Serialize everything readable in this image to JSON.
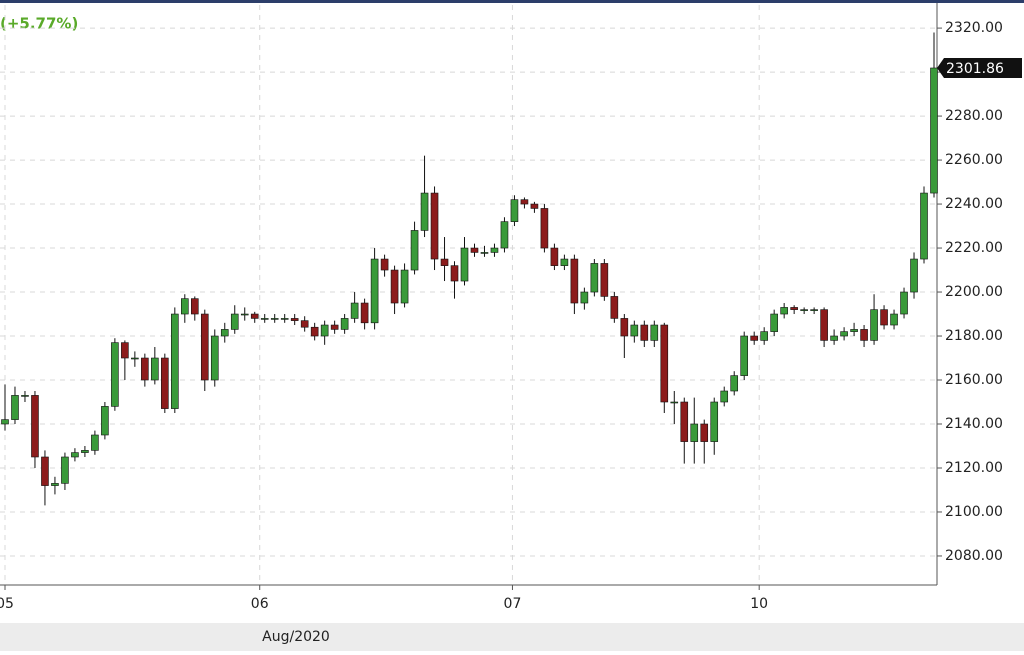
{
  "chart_data": {
    "type": "candlestick",
    "change_label": "(+5.77%)",
    "x_axis_label": "Aug/2020",
    "up_color": "#3a9a3a",
    "down_color": "#8c1c1c",
    "grid": true,
    "x": [
      0,
      1,
      2,
      3,
      4,
      5,
      6,
      7,
      8,
      9,
      10,
      11,
      12,
      13,
      14,
      15,
      16,
      17,
      18,
      19,
      20,
      21,
      22,
      23,
      24,
      25,
      26,
      27,
      28,
      29,
      30,
      31,
      32,
      33,
      34,
      35,
      36,
      37,
      38,
      39,
      40,
      41,
      42,
      43,
      44,
      45,
      46,
      47,
      48,
      49,
      50,
      51,
      52,
      53,
      54,
      55,
      56,
      57,
      58,
      59,
      60,
      61,
      62,
      63,
      64,
      65,
      66,
      67,
      68,
      69,
      70,
      71,
      72,
      73,
      74,
      75,
      76,
      77,
      78,
      79,
      80,
      81,
      82,
      83,
      84,
      85,
      86,
      87,
      88,
      89,
      90,
      91,
      92,
      93
    ],
    "open": [
      2140,
      2142,
      2153,
      2153,
      2125,
      2112,
      2113,
      2125,
      2127,
      2128,
      2135,
      2148,
      2177,
      2170,
      2170,
      2160,
      2170,
      2147,
      2190,
      2197,
      2190,
      2160,
      2180,
      2183,
      2190,
      2190,
      2188,
      2188,
      2188,
      2188,
      2187,
      2184,
      2180,
      2185,
      2183,
      2188,
      2195,
      2186,
      2215,
      2210,
      2195,
      2210,
      2228,
      2245,
      2215,
      2212,
      2205,
      2220,
      2218,
      2218,
      2220,
      2232,
      2242,
      2240,
      2238,
      2220,
      2212,
      2215,
      2195,
      2200,
      2213,
      2198,
      2188,
      2180,
      2185,
      2178,
      2185,
      2150,
      2150,
      2132,
      2140,
      2132,
      2150,
      2155,
      2162,
      2180,
      2178,
      2182,
      2190,
      2193,
      2192,
      2192,
      2192,
      2178,
      2180,
      2182,
      2183,
      2178,
      2192,
      2185,
      2190,
      2200,
      2215,
      2245
    ],
    "high": [
      2158,
      2157,
      2155,
      2155,
      2128,
      2116,
      2127,
      2129,
      2130,
      2137,
      2150,
      2179,
      2178,
      2173,
      2172,
      2175,
      2172,
      2193,
      2199,
      2198,
      2192,
      2183,
      2186,
      2194,
      2193,
      2191,
      2190,
      2190,
      2190,
      2190,
      2189,
      2186,
      2187,
      2187,
      2190,
      2200,
      2197,
      2220,
      2217,
      2212,
      2213,
      2232,
      2262,
      2248,
      2225,
      2214,
      2225,
      2222,
      2221,
      2222,
      2234,
      2244,
      2243,
      2241,
      2240,
      2222,
      2217,
      2217,
      2202,
      2215,
      2215,
      2200,
      2190,
      2187,
      2187,
      2187,
      2186,
      2155,
      2152,
      2152,
      2142,
      2152,
      2157,
      2164,
      2182,
      2182,
      2184,
      2192,
      2195,
      2194,
      2193,
      2193,
      2193,
      2183,
      2184,
      2186,
      2185,
      2199,
      2194,
      2192,
      2202,
      2218,
      2248,
      2318
    ],
    "low": [
      2137,
      2140,
      2150,
      2120,
      2103,
      2108,
      2110,
      2123,
      2125,
      2126,
      2133,
      2146,
      2160,
      2166,
      2157,
      2158,
      2145,
      2145,
      2186,
      2187,
      2155,
      2157,
      2177,
      2181,
      2187,
      2186,
      2186,
      2186,
      2186,
      2185,
      2182,
      2178,
      2176,
      2181,
      2181,
      2186,
      2183,
      2183,
      2207,
      2190,
      2193,
      2208,
      2225,
      2210,
      2205,
      2197,
      2203,
      2216,
      2216,
      2216,
      2218,
      2230,
      2238,
      2236,
      2218,
      2210,
      2210,
      2190,
      2192,
      2198,
      2196,
      2186,
      2170,
      2177,
      2175,
      2175,
      2145,
      2140,
      2122,
      2122,
      2122,
      2126,
      2148,
      2153,
      2160,
      2176,
      2176,
      2180,
      2188,
      2190,
      2190,
      2190,
      2175,
      2176,
      2178,
      2180,
      2175,
      2176,
      2183,
      2183,
      2188,
      2197,
      2213,
      2243
    ],
    "close": [
      2142,
      2153,
      2153,
      2125,
      2112,
      2113,
      2125,
      2127,
      2128,
      2135,
      2148,
      2177,
      2170,
      2170,
      2160,
      2170,
      2147,
      2190,
      2197,
      2190,
      2160,
      2180,
      2183,
      2190,
      2190,
      2188,
      2188,
      2188,
      2188,
      2187,
      2184,
      2180,
      2185,
      2183,
      2188,
      2195,
      2186,
      2215,
      2210,
      2195,
      2210,
      2228,
      2245,
      2215,
      2212,
      2205,
      2220,
      2218,
      2218,
      2220,
      2232,
      2242,
      2240,
      2238,
      2220,
      2212,
      2215,
      2195,
      2200,
      2213,
      2198,
      2188,
      2180,
      2185,
      2178,
      2185,
      2150,
      2150,
      2132,
      2140,
      2132,
      2150,
      2155,
      2162,
      2180,
      2178,
      2182,
      2190,
      2193,
      2192,
      2192,
      2192,
      2178,
      2180,
      2182,
      2183,
      2178,
      2192,
      2185,
      2190,
      2200,
      2215,
      2245,
      2301.86
    ],
    "xlim": [
      -0.5,
      93.3
    ],
    "xticks": [
      {
        "value": 0,
        "label": "05"
      },
      {
        "value": 25.5,
        "label": "06"
      },
      {
        "value": 50.8,
        "label": "07"
      },
      {
        "value": 75.5,
        "label": "10"
      }
    ],
    "ylim": [
      2066.8,
      2330.5
    ],
    "yticks": [
      {
        "value": 2080,
        "label": "2080.00"
      },
      {
        "value": 2100,
        "label": "2100.00"
      },
      {
        "value": 2120,
        "label": "2120.00"
      },
      {
        "value": 2140,
        "label": "2140.00"
      },
      {
        "value": 2160,
        "label": "2160.00"
      },
      {
        "value": 2180,
        "label": "2180.00"
      },
      {
        "value": 2200,
        "label": "2200.00"
      },
      {
        "value": 2220,
        "label": "2220.00"
      },
      {
        "value": 2240,
        "label": "2240.00"
      },
      {
        "value": 2260,
        "label": "2260.00"
      },
      {
        "value": 2280,
        "label": "2280.00"
      },
      {
        "value": 2300,
        "label": "2300.00"
      },
      {
        "value": 2320,
        "label": "2320.00"
      }
    ]
  }
}
